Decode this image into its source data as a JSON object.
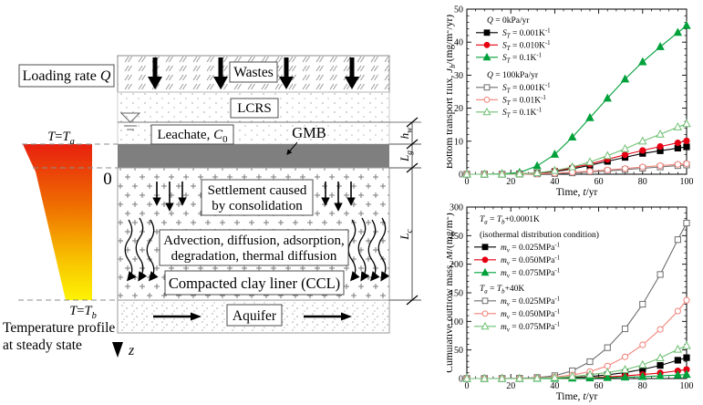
{
  "diagram": {
    "loading_rate": "Loading rate *Q*",
    "wastes": "Wastes",
    "lcrs": "LCRS",
    "leachate": "Leachate, *C*_{0}",
    "gmb": "GMB",
    "origin_label": "0",
    "settlement_line1": "Settlement caused",
    "settlement_line2": "by consolidation",
    "advection_line1": "Advection, diffusion, adsorption,",
    "advection_line2": "degradation, thermal diffusion",
    "ccl": "Compacted clay liner (CCL)",
    "aquifer": "Aquifer",
    "t_top": "*T*=*T*_{a}",
    "t_bottom": "*T*=*T*_{b}",
    "temp_profile_line1": "Temperature profile",
    "temp_profile_line2": "at steady state",
    "z_axis": "*z*",
    "dim_hw": "*h*_{w}",
    "dim_lg": "*L*_{g}",
    "dim_lc": "*L*_{c}",
    "colors": {
      "gmb_gray": "#7f7f7f",
      "profile_stops": [
        "#e8200f",
        "#ef6f00",
        "#f8c400",
        "#fdf303"
      ]
    }
  },
  "chart_data": [
    {
      "type": "line",
      "title": "",
      "xlabel": "Time, *t*/yr",
      "ylabel": "Bottom transport flux, *J*_{b}/(mg/m^{2}/yr)",
      "xlim": [
        0,
        100
      ],
      "ylim": [
        0,
        50
      ],
      "xstep": 20,
      "ystep": 10,
      "xminor": 4,
      "yminor": 2,
      "grid": false,
      "legend_position": "upper-left-inside",
      "x": [
        0,
        8,
        16,
        24,
        32,
        40,
        48,
        56,
        64,
        72,
        80,
        88,
        96,
        100
      ],
      "series": [
        {
          "label": "*S*_{T} = 0.001K^{-1}",
          "marker": "square",
          "fill": "filled",
          "color": "#000000",
          "values": [
            0,
            0,
            0,
            0.1,
            0.3,
            0.8,
            1.6,
            2.7,
            3.9,
            5.1,
            6.3,
            7.1,
            7.9,
            8.3
          ]
        },
        {
          "label": "*S*_{T} = 0.010K^{-1}",
          "marker": "circle",
          "fill": "filled",
          "color": "#e60012",
          "values": [
            0,
            0,
            0,
            0.1,
            0.4,
            1.0,
            2.0,
            3.1,
            4.5,
            5.9,
            7.2,
            8.4,
            9.5,
            10.1
          ]
        },
        {
          "label": "*S*_{T} = 0.1K^{-1}",
          "marker": "triangle",
          "fill": "filled",
          "color": "#00a03a",
          "values": [
            0,
            0,
            0.1,
            0.5,
            2.5,
            6.0,
            11.2,
            17.1,
            23.0,
            28.8,
            34.0,
            38.6,
            42.9,
            45.0
          ]
        },
        {
          "label": "*S*_{T} = 0.001K^{-1}",
          "marker": "square",
          "fill": "open",
          "color": "#6e6e6e",
          "values": [
            0,
            0,
            0,
            0,
            0.1,
            0.2,
            0.4,
            0.7,
            1.0,
            1.4,
            1.8,
            2.2,
            2.6,
            2.8
          ]
        },
        {
          "label": "*S*_{T} = 0.01K^{-1}",
          "marker": "circle",
          "fill": "open",
          "color": "#f2837b",
          "values": [
            0,
            0,
            0,
            0,
            0.1,
            0.3,
            0.6,
            0.9,
            1.3,
            1.7,
            2.2,
            2.6,
            3.0,
            3.2
          ]
        },
        {
          "label": "*S*_{T} = 0.1K^{-1}",
          "marker": "triangle",
          "fill": "open",
          "color": "#6fbf73",
          "values": [
            0,
            0,
            0,
            0.1,
            0.4,
            1.1,
            2.2,
            3.7,
            5.6,
            7.7,
            10.0,
            12.1,
            14.3,
            15.3
          ]
        }
      ],
      "legend_groups": [
        {
          "title_lines": [
            "*Q* = 0kPa/yr"
          ],
          "items": [
            0,
            1,
            2
          ]
        },
        {
          "title_lines": [
            "*Q* = 100kPa/yr"
          ],
          "items": [
            3,
            4,
            5
          ]
        }
      ]
    },
    {
      "type": "line",
      "title": "",
      "xlabel": "Time, *t*/yr",
      "ylabel": "Cumulative outflow mass, *M*/(mg/m^{2})",
      "xlim": [
        0,
        100
      ],
      "ylim": [
        0,
        300
      ],
      "xstep": 20,
      "ystep": 50,
      "xminor": 4,
      "yminor": 10,
      "grid": false,
      "legend_position": "upper-left-inside",
      "x": [
        0,
        8,
        16,
        24,
        32,
        40,
        48,
        56,
        64,
        72,
        80,
        88,
        96,
        100
      ],
      "series": [
        {
          "label": "*m*_{v} = 0.025MPa^{-1}",
          "marker": "square",
          "fill": "filled",
          "color": "#000000",
          "values": [
            0,
            0,
            0,
            0,
            0.2,
            0.7,
            1.8,
            3.5,
            6.5,
            10.5,
            16,
            23,
            32,
            36.5
          ]
        },
        {
          "label": "*m*_{v} = 0.050MPa^{-1}",
          "marker": "circle",
          "fill": "filled",
          "color": "#e60012",
          "values": [
            0,
            0,
            0,
            0,
            0.1,
            0.3,
            0.8,
            1.6,
            2.9,
            4.6,
            7.0,
            9.8,
            13.5,
            15.8
          ]
        },
        {
          "label": "*m*_{v} = 0.075MPa^{-1}",
          "marker": "triangle",
          "fill": "filled",
          "color": "#00a03a",
          "values": [
            0,
            0,
            0,
            0,
            0.1,
            0.2,
            0.5,
            0.9,
            1.5,
            2.3,
            3.3,
            4.6,
            6.1,
            7.0
          ]
        },
        {
          "label": "*m*_{v} = 0.025MPa^{-1}",
          "marker": "square",
          "fill": "open",
          "color": "#6e6e6e",
          "values": [
            0,
            0,
            0.1,
            0.5,
            1.8,
            5.0,
            13.5,
            29.5,
            54,
            87,
            130,
            182,
            243,
            272
          ]
        },
        {
          "label": "*m*_{v} = 0.050MPa^{-1}",
          "marker": "circle",
          "fill": "open",
          "color": "#f2837b",
          "values": [
            0,
            0,
            0,
            0.2,
            0.9,
            2.6,
            6.2,
            12.2,
            22,
            38,
            59,
            86,
            118,
            137
          ]
        },
        {
          "label": "*m*_{v} = 0.075MPa^{-1}",
          "marker": "triangle",
          "fill": "open",
          "color": "#6fbf73",
          "values": [
            0,
            0,
            0,
            0.1,
            0.5,
            1.5,
            3.5,
            6.8,
            10.5,
            15.5,
            24,
            36,
            51,
            57.5
          ]
        }
      ],
      "legend_groups": [
        {
          "title_lines": [
            "*T*_{a} = *T*_{b}+0.0001K",
            "(isothermal distribution condition)"
          ],
          "items": [
            0,
            1,
            2
          ]
        },
        {
          "title_lines": [
            "*T*_{a} = *T*_{b}+40K"
          ],
          "items": [
            3,
            4,
            5
          ]
        }
      ]
    }
  ]
}
